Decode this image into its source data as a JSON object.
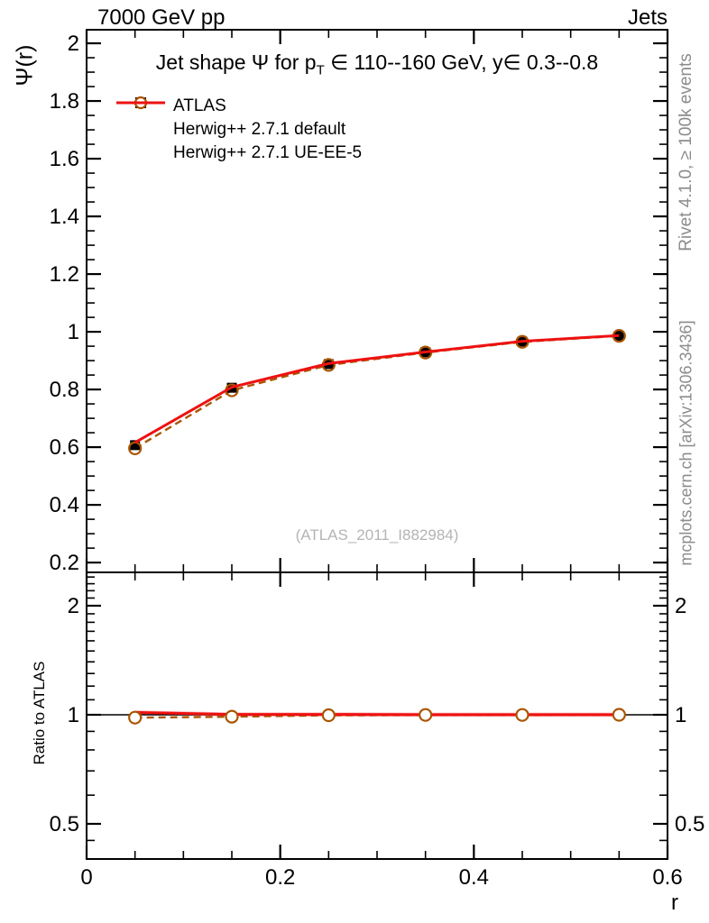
{
  "header": {
    "left": "7000 GeV pp",
    "right": "Jets"
  },
  "main": {
    "title": {
      "prefix": "Jet shape Ψ for p",
      "sub": "T",
      "suffix": " ∈ 110--160 GeV, y∈ 0.3--0.8"
    },
    "ylabel": "Ψ(r)"
  },
  "ratio": {
    "ylabel": "Ratio to ATLAS"
  },
  "xlabel": "r",
  "watermark": "(ATLAS_2011_I882984)",
  "side_notes": {
    "rivet": "Rivet 4.1.0, ≥ 100k events",
    "mcplots": "mcplots.cern.ch [arXiv:1306.3436]"
  },
  "legend": {
    "items": [
      {
        "label": "ATLAS",
        "marker": "filled-square",
        "color": "#000000"
      },
      {
        "label": "Herwig++ 2.7.1 default",
        "marker": "open-circle-dashed",
        "color": "#aa5500"
      },
      {
        "label": "Herwig++ 2.7.1 UE-EE-5",
        "marker": "solid-line",
        "color": "#ee1111"
      }
    ]
  },
  "colors": {
    "atlas": "#000000",
    "herwig_default": "#aa5500",
    "herwig_ueee5": "#ee1111",
    "band": "#f7b0b0",
    "frame": "#000000",
    "gray_text": "#8c8c8c",
    "watermark": "#b4b4b4"
  },
  "chart_data": [
    {
      "type": "line",
      "panel": "main",
      "title": "Jet shape Ψ for p_T ∈ 110--160 GeV, y∈ 0.3--0.8",
      "xlabel": "r",
      "ylabel": "Ψ(r)",
      "xlim": [
        0,
        0.6
      ],
      "ylim": [
        0.166,
        2.047
      ],
      "x": [
        0.05,
        0.15,
        0.25,
        0.35,
        0.45,
        0.55
      ],
      "series": [
        {
          "name": "ATLAS",
          "marker": "filled-square",
          "color": "#000000",
          "values": [
            0.607,
            0.806,
            0.888,
            0.929,
            0.966,
            0.986
          ]
        },
        {
          "name": "Herwig++ 2.7.1 default",
          "marker": "open-circle",
          "linestyle": "dashed",
          "color": "#aa5500",
          "values": [
            0.596,
            0.797,
            0.885,
            0.928,
            0.965,
            0.986
          ]
        },
        {
          "name": "Herwig++ 2.7.1 UE-EE-5",
          "linestyle": "solid",
          "color": "#ee1111",
          "values": [
            0.616,
            0.808,
            0.89,
            0.93,
            0.967,
            0.987
          ]
        }
      ],
      "yticks": {
        "major": [
          0.2,
          0.4,
          0.6,
          0.8,
          1,
          1.2,
          1.4,
          1.6,
          1.8,
          2
        ],
        "labels": [
          "0.2",
          "0.4",
          "0.6",
          "0.8",
          "1",
          "1.2",
          "1.4",
          "1.6",
          "1.8",
          "2"
        ],
        "minor_step": 0.05
      },
      "xticks": {
        "major": [
          0,
          0.2,
          0.4,
          0.6
        ],
        "labels": [
          "0",
          "0.2",
          "0.4",
          "0.6"
        ],
        "minor_step": 0.05
      }
    },
    {
      "type": "line",
      "panel": "ratio",
      "ylabel": "Ratio to ATLAS",
      "yscale": "log",
      "ylim": [
        0.4,
        2.47
      ],
      "reference_line": 1,
      "x": [
        0.05,
        0.15,
        0.25,
        0.35,
        0.45,
        0.55
      ],
      "series": [
        {
          "name": "Herwig++ 2.7.1 default",
          "marker": "open-circle",
          "linestyle": "dashed",
          "color": "#aa5500",
          "values": [
            0.982,
            0.988,
            0.997,
            0.999,
            0.999,
            1.0
          ]
        },
        {
          "name": "Herwig++ 2.7.1 UE-EE-5",
          "linestyle": "solid",
          "color": "#ee1111",
          "band": 0.013,
          "values": [
            1.015,
            1.002,
            1.002,
            1.001,
            1.001,
            1.001
          ]
        }
      ],
      "yticks": {
        "major": [
          0.5,
          1,
          2
        ],
        "labels": [
          "0.5",
          "1",
          "2"
        ],
        "minor": [
          0.45,
          0.6,
          0.7,
          0.8,
          0.9,
          1.1,
          1.2,
          1.3,
          1.4,
          1.5,
          1.6,
          1.7,
          1.8,
          1.9,
          2.1,
          2.2,
          2.3,
          2.4
        ]
      }
    }
  ]
}
